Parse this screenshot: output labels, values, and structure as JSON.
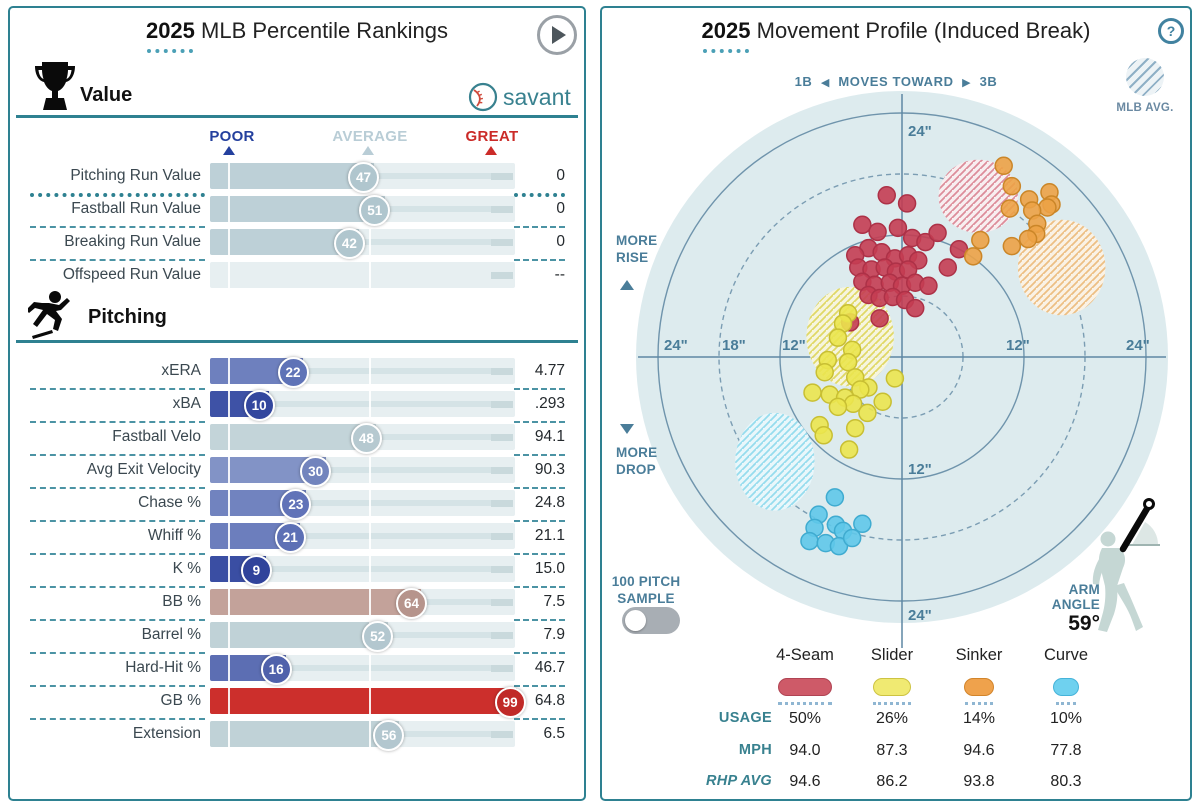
{
  "left": {
    "title_year": "2025",
    "title_rest": " MLB Percentile Rankings",
    "value_section": "Value",
    "pitching_section": "Pitching",
    "brand": "savant",
    "scale": {
      "poor": "POOR",
      "average": "AVERAGE",
      "great": "GREAT"
    }
  },
  "right": {
    "title_year": "2025",
    "title_rest": " Movement Profile (Induced Break)",
    "help": "?",
    "moves_left": "1B",
    "moves_toward": "MOVES TOWARD",
    "moves_right": "3B",
    "mlb_avg": "MLB AVG.",
    "more_rise_1": "MORE",
    "more_rise_2": "RISE",
    "more_drop_1": "MORE",
    "more_drop_2": "DROP",
    "sample_1": "100 PITCH",
    "sample_2": "SAMPLE",
    "arm_label_1": "ARM",
    "arm_label_2": "ANGLE",
    "arm_value": "59°",
    "legend_row_labels": [
      "USAGE",
      "MPH",
      "RHP AVG"
    ]
  },
  "chart_data": [
    {
      "type": "bar",
      "title": "2025 MLB Percentile Rankings",
      "orientation": "horizontal",
      "xlim": [
        0,
        100
      ],
      "scale_labels": [
        "POOR",
        "AVERAGE",
        "GREAT"
      ],
      "sections": [
        {
          "name": "Value",
          "rows": [
            {
              "label": "Pitching Run Value",
              "percentile": 47,
              "value": "0",
              "bar": "#bdd0d7",
              "bubble": "#b0c6ce",
              "sep": "dotted"
            },
            {
              "label": "Fastball Run Value",
              "percentile": 51,
              "value": "0",
              "bar": "#bdd0d7",
              "bubble": "#b0c6ce"
            },
            {
              "label": "Breaking Run Value",
              "percentile": 42,
              "value": "0",
              "bar": "#bdd0d7",
              "bubble": "#b0c6ce"
            },
            {
              "label": "Offspeed Run Value",
              "percentile": null,
              "value": "--"
            }
          ]
        },
        {
          "name": "Pitching",
          "rows": [
            {
              "label": "xERA",
              "percentile": 22,
              "value": "4.77",
              "bar": "#6e80be",
              "bubble": "#5f73b7"
            },
            {
              "label": "xBA",
              "percentile": 10,
              "value": ".293",
              "bar": "#3e52a6",
              "bubble": "#33479e"
            },
            {
              "label": "Fastball Velo",
              "percentile": 48,
              "value": "94.1",
              "bar": "#c3d4d9",
              "bubble": "#b6c9d0"
            },
            {
              "label": "Avg Exit Velocity",
              "percentile": 30,
              "value": "90.3",
              "bar": "#8293c6",
              "bubble": "#7284bd"
            },
            {
              "label": "Chase %",
              "percentile": 23,
              "value": "24.8",
              "bar": "#7183bf",
              "bubble": "#6173b8"
            },
            {
              "label": "Whiff %",
              "percentile": 21,
              "value": "21.1",
              "bar": "#6c7ebd",
              "bubble": "#5d70b5"
            },
            {
              "label": "K %",
              "percentile": 9,
              "value": "15.0",
              "bar": "#3a4ea3",
              "bubble": "#30439b"
            },
            {
              "label": "BB %",
              "percentile": 64,
              "value": "7.5",
              "bar": "#c3a29a",
              "bubble": "#b6948c"
            },
            {
              "label": "Barrel %",
              "percentile": 52,
              "value": "7.9",
              "bar": "#c0d2d7",
              "bubble": "#b3c7cf"
            },
            {
              "label": "Hard-Hit %",
              "percentile": 16,
              "value": "46.7",
              "bar": "#5c6eb3",
              "bubble": "#4f61ab"
            },
            {
              "label": "GB %",
              "percentile": 99,
              "value": "64.8",
              "bar": "#cc2f2c",
              "bubble": "#c02a28"
            },
            {
              "label": "Extension",
              "percentile": 56,
              "value": "6.5",
              "bar": "#c0d2d7",
              "bubble": "#b3c7cf"
            }
          ]
        }
      ]
    },
    {
      "type": "scatter",
      "title": "2025 Movement Profile (Induced Break)",
      "units": "inches",
      "xlabel": "1B ◀ MOVES TOWARD ▶ 3B",
      "ylabel_up": "MORE RISE",
      "ylabel_down": "MORE DROP",
      "rings_in": [
        6,
        12,
        18,
        24
      ],
      "axis_ticks": {
        "h_left": [
          "24\"",
          "18\"",
          "12\""
        ],
        "h_right": [
          "12\"",
          "24\""
        ],
        "v_top": "24\"",
        "v_mid": "12\"",
        "v_bottom": "24\""
      },
      "arm_angle_deg": 59,
      "sample_label": "100 PITCH SAMPLE",
      "mlb_avg_legend": "MLB AVG.",
      "series": [
        {
          "name": "4-Seam",
          "usage_pct": "50%",
          "mph": "94.0",
          "rhp_avg_mph": "94.6",
          "fill": "#c43d52",
          "stroke": "#ad3147",
          "hatch_line": "#dd8896",
          "hatch_bg": "#f9eef0",
          "pill_fill": "#ce5a68",
          "pill_stroke": "#b04453",
          "pill_w": 54,
          "dots_w": 54,
          "mlb_avg": {
            "x": 7.5,
            "y": 15.8,
            "rx": 3.9,
            "ry": 3.6
          },
          "points": [
            [
              -1.5,
              15.9
            ],
            [
              0.5,
              15.1
            ],
            [
              -3.9,
              13.0
            ],
            [
              -2.4,
              12.3
            ],
            [
              -0.4,
              12.7
            ],
            [
              1.0,
              11.7
            ],
            [
              2.3,
              11.3
            ],
            [
              3.5,
              12.2
            ],
            [
              -3.3,
              10.7
            ],
            [
              -4.6,
              10.0
            ],
            [
              -2.0,
              10.3
            ],
            [
              -0.7,
              9.7
            ],
            [
              0.6,
              10.0
            ],
            [
              1.6,
              9.5
            ],
            [
              5.6,
              10.6
            ],
            [
              4.5,
              8.8
            ],
            [
              -4.3,
              8.8
            ],
            [
              -3.0,
              8.6
            ],
            [
              -1.7,
              8.8
            ],
            [
              -0.6,
              8.4
            ],
            [
              0.6,
              8.6
            ],
            [
              -3.9,
              7.4
            ],
            [
              -2.7,
              7.1
            ],
            [
              -1.2,
              7.3
            ],
            [
              0.0,
              7.0
            ],
            [
              1.3,
              7.3
            ],
            [
              2.6,
              7.0
            ],
            [
              -3.3,
              6.1
            ],
            [
              -2.2,
              5.8
            ],
            [
              -0.9,
              5.9
            ],
            [
              0.3,
              5.6
            ],
            [
              1.3,
              4.8
            ],
            [
              -5.1,
              3.4
            ],
            [
              -2.2,
              3.8
            ]
          ]
        },
        {
          "name": "Slider",
          "usage_pct": "26%",
          "mph": "87.3",
          "rhp_avg_mph": "86.2",
          "fill": "#ebe54e",
          "stroke": "#c8bf33",
          "hatch_line": "#e0d75f",
          "hatch_bg": "#f7f5dd",
          "pill_fill": "#f0ea72",
          "pill_stroke": "#cdc342",
          "pill_w": 38,
          "dots_w": 38,
          "mlb_avg": {
            "x": -5.1,
            "y": 2.0,
            "rx": 4.3,
            "ry": 4.9
          },
          "points": [
            [
              -5.3,
              4.3
            ],
            [
              -5.8,
              3.3
            ],
            [
              -6.3,
              1.9
            ],
            [
              -4.9,
              0.7
            ],
            [
              -7.3,
              -0.3
            ],
            [
              -5.3,
              -0.5
            ],
            [
              -7.6,
              -1.5
            ],
            [
              -4.6,
              -2.0
            ],
            [
              -0.7,
              -2.1
            ],
            [
              -3.3,
              -3.0
            ],
            [
              -4.1,
              -3.2
            ],
            [
              -8.8,
              -3.5
            ],
            [
              -7.1,
              -3.7
            ],
            [
              -5.6,
              -4.0
            ],
            [
              -1.9,
              -4.4
            ],
            [
              -4.8,
              -4.6
            ],
            [
              -6.3,
              -4.9
            ],
            [
              -8.1,
              -6.7
            ],
            [
              -3.4,
              -5.5
            ],
            [
              -4.6,
              -7.0
            ],
            [
              -7.7,
              -7.7
            ],
            [
              -5.2,
              -9.1
            ]
          ]
        },
        {
          "name": "Sinker",
          "usage_pct": "14%",
          "mph": "94.6",
          "rhp_avg_mph": "93.8",
          "fill": "#eca246",
          "stroke": "#cb8628",
          "hatch_line": "#eebd7e",
          "hatch_bg": "#fbf2e4",
          "pill_fill": "#efa24c",
          "pill_stroke": "#d2842a",
          "pill_w": 30,
          "dots_w": 28,
          "mlb_avg": {
            "x": 15.7,
            "y": 8.8,
            "rx": 4.3,
            "ry": 4.7
          },
          "points": [
            [
              10.0,
              18.8
            ],
            [
              10.8,
              16.8
            ],
            [
              14.5,
              16.2
            ],
            [
              12.5,
              15.5
            ],
            [
              14.7,
              15.0
            ],
            [
              10.6,
              14.6
            ],
            [
              14.3,
              14.7
            ],
            [
              12.8,
              14.4
            ],
            [
              13.3,
              13.1
            ],
            [
              13.2,
              12.1
            ],
            [
              12.4,
              11.6
            ],
            [
              7.7,
              11.5
            ],
            [
              10.8,
              10.9
            ],
            [
              7.0,
              9.9
            ]
          ]
        },
        {
          "name": "Curve",
          "usage_pct": "10%",
          "mph": "77.8",
          "rhp_avg_mph": "80.3",
          "fill": "#5fc8e9",
          "stroke": "#3fabd0",
          "hatch_line": "#92dbee",
          "hatch_bg": "#eaf8fc",
          "pill_fill": "#6fd1ef",
          "pill_stroke": "#45b3d9",
          "pill_w": 26,
          "dots_w": 20,
          "mlb_avg": {
            "x": -12.5,
            "y": -10.3,
            "rx": 3.9,
            "ry": 4.8
          },
          "points": [
            [
              -6.6,
              -13.8
            ],
            [
              -8.2,
              -15.5
            ],
            [
              -8.6,
              -16.8
            ],
            [
              -6.5,
              -16.5
            ],
            [
              -5.8,
              -17.1
            ],
            [
              -3.9,
              -16.4
            ],
            [
              -9.1,
              -18.1
            ],
            [
              -7.5,
              -18.3
            ],
            [
              -6.2,
              -18.6
            ],
            [
              -4.9,
              -17.8
            ]
          ]
        }
      ]
    }
  ]
}
